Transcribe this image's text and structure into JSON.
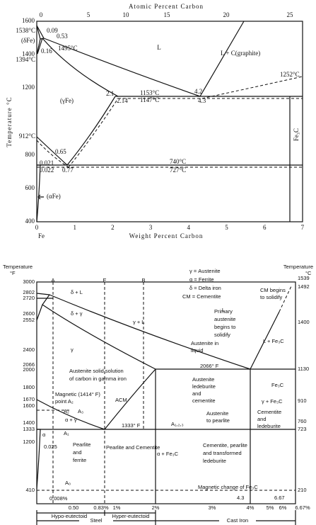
{
  "top_diagram": {
    "title": "Atomic Percent Carbon",
    "x_label": "Weight Percent Carbon",
    "y_label": "Temperature °C",
    "top_ticks": [
      "0",
      "5",
      "10",
      "15",
      "20",
      "25"
    ],
    "bottom_ticks": [
      "0",
      "1",
      "2",
      "3",
      "4",
      "5",
      "6",
      "7"
    ],
    "left_ticks": [
      "1600",
      "1400",
      "1200",
      "800",
      "600",
      "400"
    ],
    "labels": [
      "1538°C",
      "(δFe)",
      "1394°C",
      "912°C",
      "0.09",
      "0.53",
      "0.16",
      "1495°C",
      "L",
      "L + C(graphite)",
      "1153°C",
      "1147°C",
      "2.1",
      "2.14",
      "4.2",
      "4.3",
      "(γFe)",
      "0.65",
      "0.021",
      "0.77",
      "0.022",
      "740°C",
      "727°C",
      "(αFe)",
      "Fe",
      "1252°C",
      "Fe₃C"
    ]
  },
  "bottom_diagram": {
    "left_ticks": [
      "3000",
      "2802",
      "2720",
      "2600",
      "2552",
      "2400",
      "2066",
      "2000",
      "1800",
      "1670",
      "1600",
      "1400",
      "1333",
      "1200",
      "410"
    ],
    "right_ticks": [
      "1539",
      "1492",
      "1400",
      "1130",
      "910",
      "760",
      "723",
      "210"
    ],
    "bottom_ticks": [
      "0.50",
      "0.83%",
      "1%",
      "2%",
      "3%",
      "4%",
      "5%",
      "6%",
      "6.67%"
    ],
    "ranges": [
      "Hypo-eutectoid",
      "Hyper-eutectoid",
      "Steel",
      "Cast Iron"
    ],
    "labels": [
      "Temperature",
      "°F",
      "Temperature",
      "°C",
      "γ = Austenite",
      "α = Ferrite",
      "δ = Delta iron",
      "CM = Cementite",
      "A",
      "E",
      "B",
      "L",
      "δ + L",
      "δ + γ",
      "γ + L",
      "γ",
      "Primary",
      "austenite",
      "begins to",
      "solidify",
      "CM begins",
      "to solidify",
      "L + Fe₃C",
      "Austenite in",
      "liquid",
      "2066° F",
      "Austenite solid solution",
      "of carbon in gamma iron",
      "Magnetic (1414° F)",
      "point A₂",
      "A₂",
      "A₃",
      "α + γ",
      "A₁",
      "ACM",
      "1333° F",
      "A₁,₂,₃",
      "Austenite",
      "ledeburite",
      "and",
      "cementite",
      "γ + Fe₃C",
      "Fe₃C",
      "Austenite",
      "to pearlite",
      "Cementite",
      "and",
      "ledeburite",
      "α",
      "0.025",
      "Pearlite",
      "and",
      "ferrite",
      "Pearlite and Cementite",
      "α + Fe₃C",
      "Cementite, pearlite",
      "and transformed",
      "ledeburite",
      "A₀",
      "Magnetic change of Fe₃C",
      "0.008%",
      "4.3",
      "6.67"
    ]
  }
}
